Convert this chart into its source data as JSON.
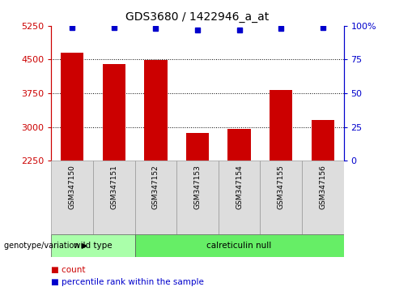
{
  "title": "GDS3680 / 1422946_a_at",
  "samples": [
    "GSM347150",
    "GSM347151",
    "GSM347152",
    "GSM347153",
    "GSM347154",
    "GSM347155",
    "GSM347156"
  ],
  "counts": [
    4650,
    4400,
    4490,
    2870,
    2960,
    3820,
    3160
  ],
  "percentiles": [
    99,
    99,
    98,
    97,
    97,
    98,
    99
  ],
  "ylim_left": [
    2250,
    5250
  ],
  "yticks_left": [
    2250,
    3000,
    3750,
    4500,
    5250
  ],
  "yticks_right": [
    0,
    25,
    50,
    75,
    100
  ],
  "ylim_right": [
    0,
    100
  ],
  "bar_color": "#cc0000",
  "dot_color": "#0000cc",
  "axis_color_left": "#cc0000",
  "axis_color_right": "#0000cc",
  "group_labels": [
    "wild type",
    "calreticulin null"
  ],
  "wt_color": "#aaffaa",
  "cn_color": "#66ee66",
  "genotype_label": "genotype/variation",
  "gridline_values": [
    3000,
    3750,
    4500
  ]
}
